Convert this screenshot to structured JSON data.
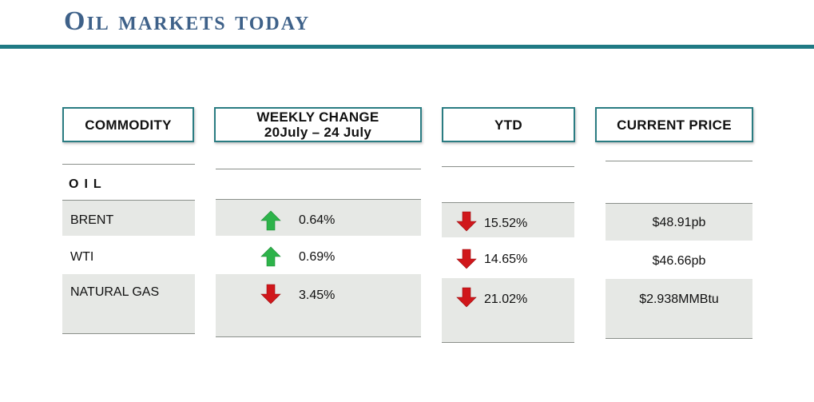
{
  "title": "Oil markets today",
  "headers": {
    "commodity": "COMMODITY",
    "weekly_line1": "WEEKLY CHANGE",
    "weekly_line2": "20July – 24 July",
    "ytd": "YTD",
    "price": "CURRENT PRICE"
  },
  "section_label": "OIL",
  "rows": [
    {
      "commodity": "BRENT",
      "weekly_direction": "up",
      "weekly_change": "0.64%",
      "ytd_direction": "down",
      "ytd": "15.52%",
      "price": "$48.91pb"
    },
    {
      "commodity": "WTI",
      "weekly_direction": "up",
      "weekly_change": "0.69%",
      "ytd_direction": "down",
      "ytd": "14.65%",
      "price": "$46.66pb"
    },
    {
      "commodity": "NATURAL GAS",
      "weekly_direction": "down",
      "weekly_change": "3.45%",
      "ytd_direction": "down",
      "ytd": "21.02%",
      "price": "$2.938MMBtu"
    }
  ],
  "colors": {
    "title": "#3e6189",
    "rule": "#1f7a84",
    "header_border": "#2a7c82",
    "up_arrow": "#2db34a",
    "down_arrow": "#d0171b",
    "band": "#e6e8e5"
  },
  "icons": {
    "up": "up-arrow-icon",
    "down": "down-arrow-icon"
  }
}
